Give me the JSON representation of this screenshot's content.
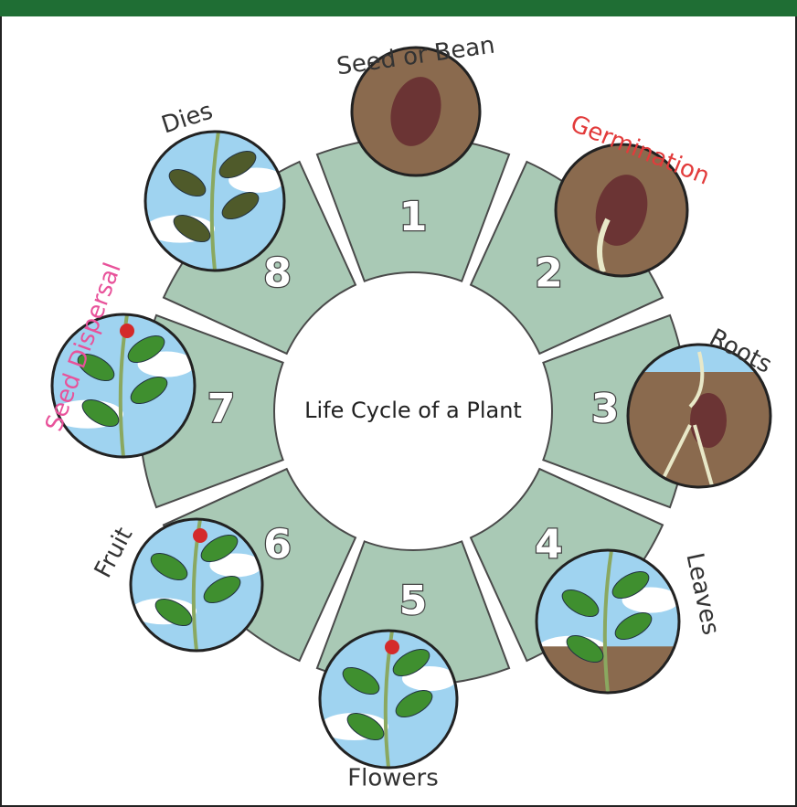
{
  "title": "Life Cycle of a Plant",
  "stages": [
    {
      "number": 1,
      "label": "Seed or Bean",
      "color": "#333333"
    },
    {
      "number": 2,
      "label": "Germination",
      "color": "#e23b3b"
    },
    {
      "number": 3,
      "label": "Roots",
      "color": "#333333"
    },
    {
      "number": 4,
      "label": "Leaves",
      "color": "#333333"
    },
    {
      "number": 5,
      "label": "Flowers",
      "color": "#333333"
    },
    {
      "number": 6,
      "label": "Fruit",
      "color": "#333333"
    },
    {
      "number": 7,
      "label": "Seed Dispersal",
      "color": "#e8529a"
    },
    {
      "number": 8,
      "label": "Dies",
      "color": "#333333"
    }
  ]
}
